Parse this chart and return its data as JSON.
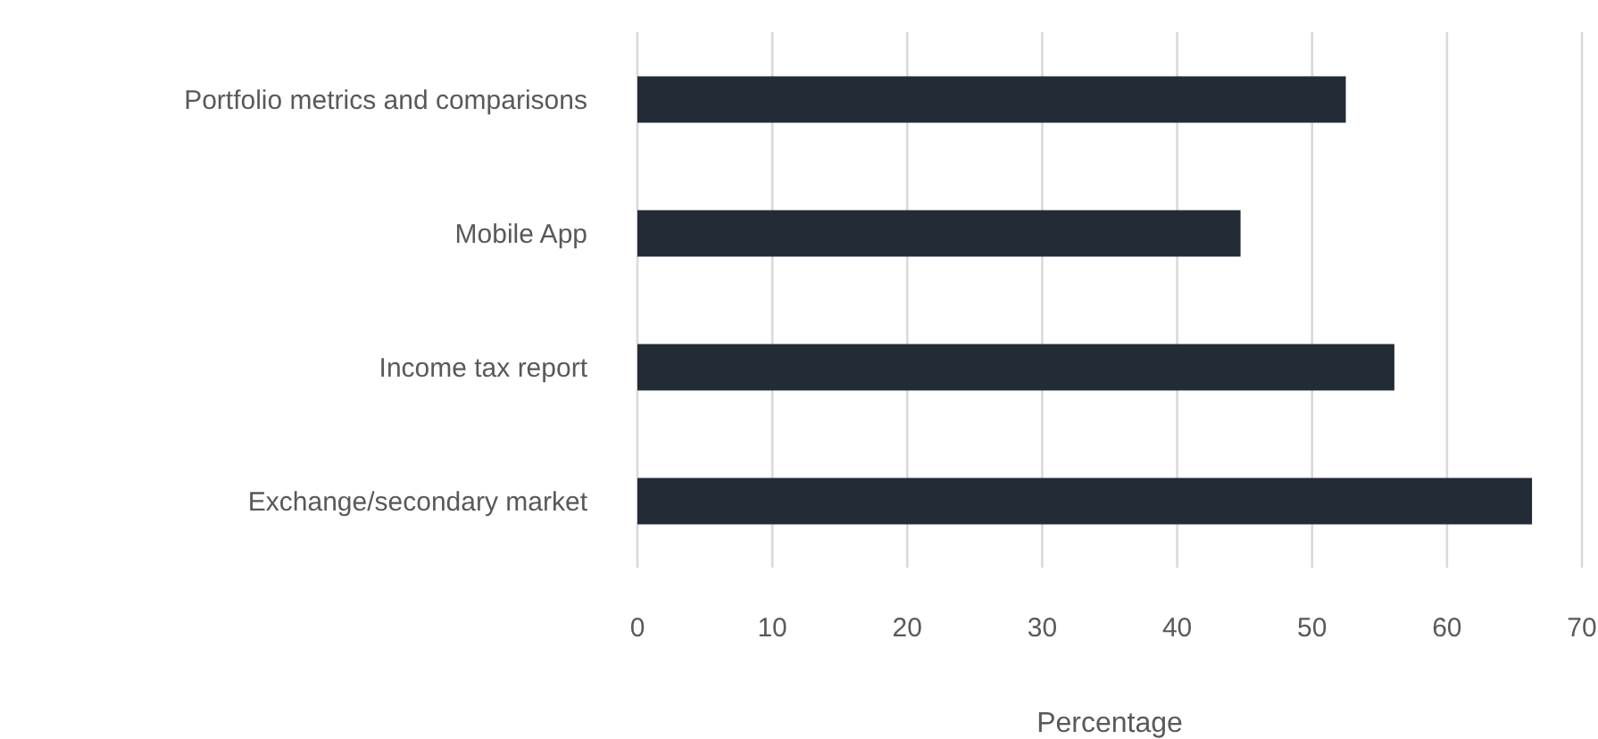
{
  "chart_data": {
    "type": "bar",
    "orientation": "horizontal",
    "xlabel": "Percentage",
    "categories": [
      "Portfolio metrics and comparisons",
      "Mobile App",
      "Income tax report",
      "Exchange/secondary market"
    ],
    "values": [
      52.5,
      44.7,
      56.1,
      66.3
    ],
    "color": "#222b36",
    "xlim": [
      0,
      70
    ],
    "xticks": [
      0,
      10,
      20,
      30,
      40,
      50,
      60,
      70
    ],
    "grid": "x"
  }
}
